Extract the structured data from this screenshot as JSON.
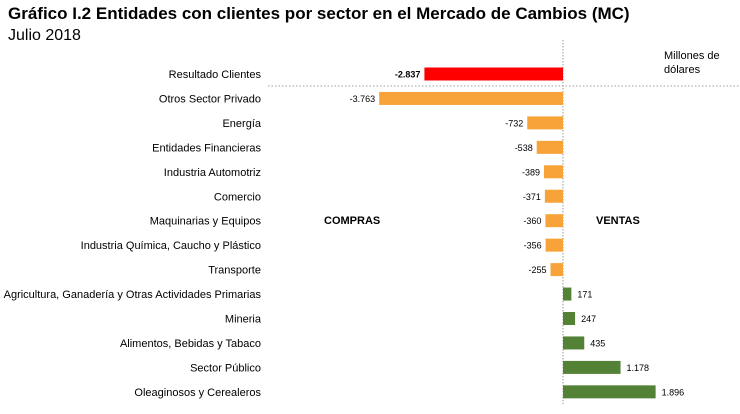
{
  "title": "Gráfico I.2 Entidades con clientes por sector en el Mercado de Cambios (MC)",
  "subtitle": "Julio 2018",
  "unit_label": "Millones de dólares",
  "left_side_label": "COMPRAS",
  "right_side_label": "VENTAS",
  "colors": {
    "total": "#ff0000",
    "negative": "#f7a33a",
    "positive": "#538135",
    "axis": "#808080"
  },
  "chart_data": {
    "type": "bar",
    "orientation": "horizontal",
    "categories": [
      "Resultado Clientes",
      "Otros Sector Privado",
      "Energía",
      "Entidades Financieras",
      "Industria Automotriz",
      "Comercio",
      "Maquinarias y Equipos",
      "Industria Química, Caucho y Plástico",
      "Transporte",
      "Agricultura, Ganadería y Otras Actividades Primarias",
      "Mineria",
      "Alimentos, Bebidas y Tabaco",
      "Sector Público",
      "Oleaginosos y Cerealeros"
    ],
    "values": [
      -2837,
      -3763,
      -732,
      -538,
      -389,
      -371,
      -360,
      -356,
      -255,
      171,
      247,
      435,
      1178,
      1896
    ],
    "value_labels": [
      "-2.837",
      "-3.763",
      "-732",
      "-538",
      "-389",
      "-371",
      "-360",
      "-356",
      "-255",
      "171",
      "247",
      "435",
      "1.178",
      "1.896"
    ],
    "xlim": [
      -3900,
      3600
    ],
    "title": "Gráfico I.2 Entidades con clientes por sector en el Mercado de Cambios (MC)",
    "xlabel": "",
    "ylabel": "",
    "grid": false,
    "legend": "none"
  }
}
